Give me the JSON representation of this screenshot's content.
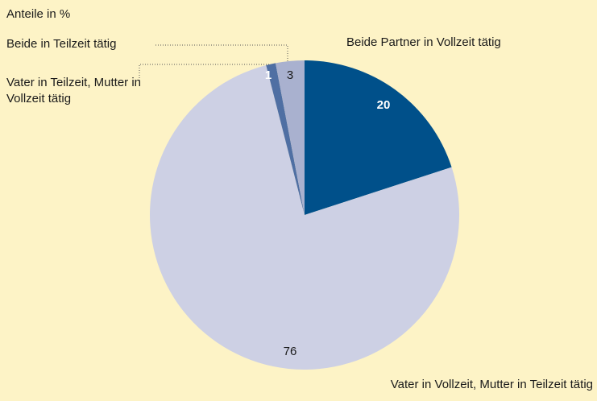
{
  "chart_data": {
    "type": "pie",
    "subtitle": "Anteile in %",
    "categories": [
      "Beide Partner in Vollzeit tätig",
      "Vater in Vollzeit, Mutter in Teilzeit tätig",
      "Vater in Teilzeit, Mutter in Vollzeit tätig",
      "Beide in Teilzeit tätig"
    ],
    "values": [
      20,
      76,
      1,
      3
    ],
    "colors": [
      "#00508a",
      "#cdd0e4",
      "#4f6fa3",
      "#a9b1cf"
    ]
  }
}
